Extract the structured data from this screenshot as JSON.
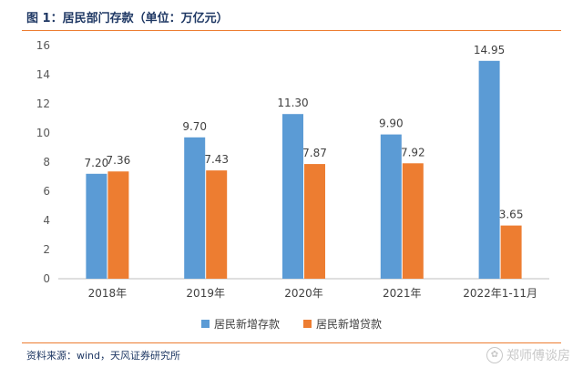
{
  "chart_data": {
    "type": "bar",
    "title": "图 1：居民部门存款（单位：万亿元）",
    "categories": [
      "2018年",
      "2019年",
      "2020年",
      "2021年",
      "2022年1-11月"
    ],
    "series": [
      {
        "name": "居民新增存款",
        "values": [
          7.2,
          9.7,
          11.3,
          9.9,
          14.95
        ],
        "labels": [
          "7.20",
          "9.70",
          "11.30",
          "9.90",
          "14.95"
        ],
        "color": "#5b9bd5"
      },
      {
        "name": "居民新增贷款",
        "values": [
          7.36,
          7.43,
          7.87,
          7.92,
          3.65
        ],
        "labels": [
          "7.36",
          "7.43",
          "7.87",
          "7.92",
          "3.65"
        ],
        "color": "#ed7d31"
      }
    ],
    "ylim": [
      0,
      16
    ],
    "yticks": [
      0,
      2,
      4,
      6,
      8,
      10,
      12,
      14,
      16
    ],
    "grid": false,
    "legend": "bottom"
  },
  "source": "资料来源：wind，天风证券研究所",
  "watermark": "郑师傅谈房"
}
